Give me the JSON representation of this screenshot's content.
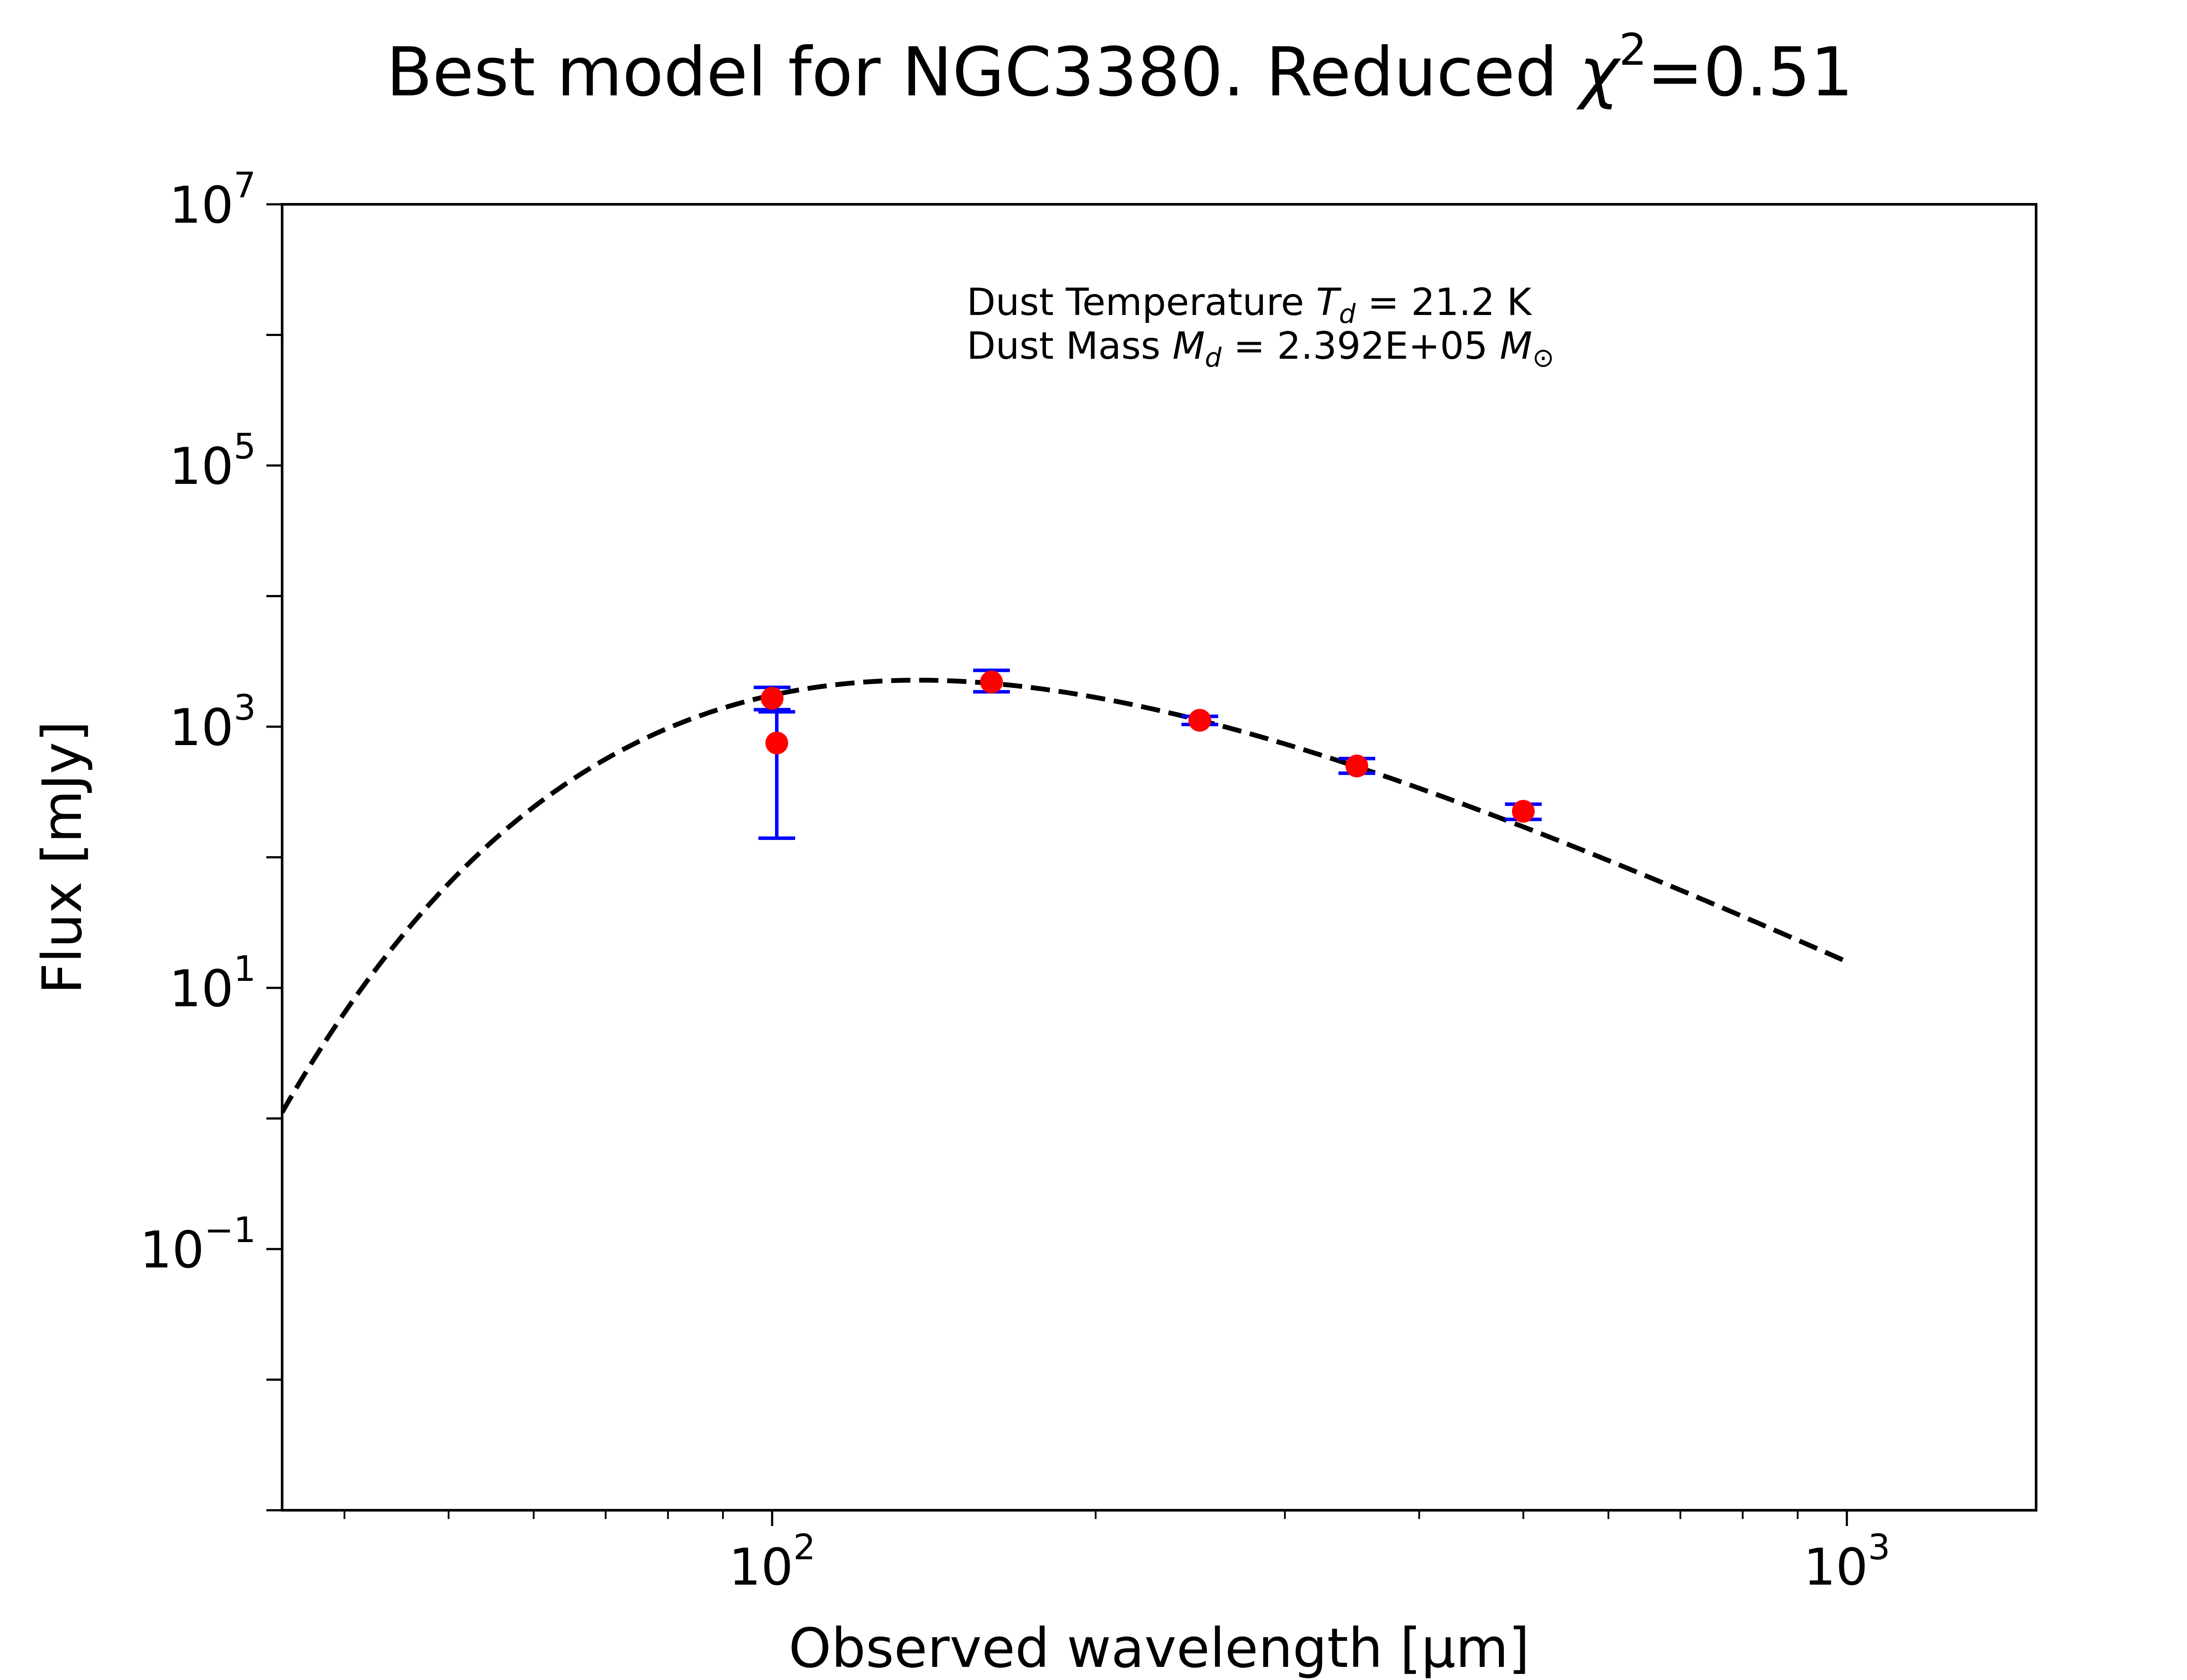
{
  "chart_data": {
    "type": "scatter",
    "title": {
      "prefix": "Best model for NGC3380. Reduced ",
      "symbol": "χ",
      "superscript": "2",
      "suffix": "=0.51"
    },
    "xlabel": "Observed wavelength [μm]",
    "ylabel": "Flux [mJy]",
    "x_scale": "log",
    "y_scale": "log",
    "xlim": [
      35,
      1500
    ],
    "ylim": [
      0.001,
      10000000
    ],
    "x_ticks": [
      {
        "base": "10",
        "exp": "2",
        "value": 100
      },
      {
        "base": "10",
        "exp": "3",
        "value": 1000
      }
    ],
    "y_ticks": [
      {
        "base": "10",
        "exp": "−1",
        "value": 0.1
      },
      {
        "base": "10",
        "exp": "1",
        "value": 10
      },
      {
        "base": "10",
        "exp": "3",
        "value": 1000
      },
      {
        "base": "10",
        "exp": "5",
        "value": 100000
      },
      {
        "base": "10",
        "exp": "7",
        "value": 10000000
      }
    ],
    "grid": false,
    "annotation": {
      "line1_prefix": "Dust Temperature ",
      "line1_symbol": "T",
      "line1_subscript": "d",
      "line1_value": " = 21.2 K",
      "line2_prefix": "Dust Mass ",
      "line2_symbol": "M",
      "line2_subscript": "d",
      "line2_value": " = 2.392E+05 ",
      "line2_unit_symbol": "M",
      "line2_unit_subscript": "⊙"
    },
    "model": {
      "style": "dashed",
      "color": "#000000",
      "temperature_K": 21.2,
      "beta": 2,
      "x_range": [
        35,
        1000
      ],
      "norm_x": 250,
      "norm_y": 1120
    },
    "observations": {
      "point_color": "#ff0000",
      "errorbar_color": "#0000ff",
      "points": [
        {
          "x": 100,
          "y": 1650,
          "yerr_low": 1350,
          "yerr_high": 2000
        },
        {
          "x": 101,
          "y": 750,
          "yerr_low": 140,
          "yerr_high": 1300
        },
        {
          "x": 160,
          "y": 2200,
          "yerr_low": 1850,
          "yerr_high": 2700
        },
        {
          "x": 250,
          "y": 1120,
          "yerr_low": 1040,
          "yerr_high": 1200
        },
        {
          "x": 350,
          "y": 500,
          "yerr_low": 440,
          "yerr_high": 570
        },
        {
          "x": 500,
          "y": 225,
          "yerr_low": 195,
          "yerr_high": 255
        }
      ]
    }
  }
}
